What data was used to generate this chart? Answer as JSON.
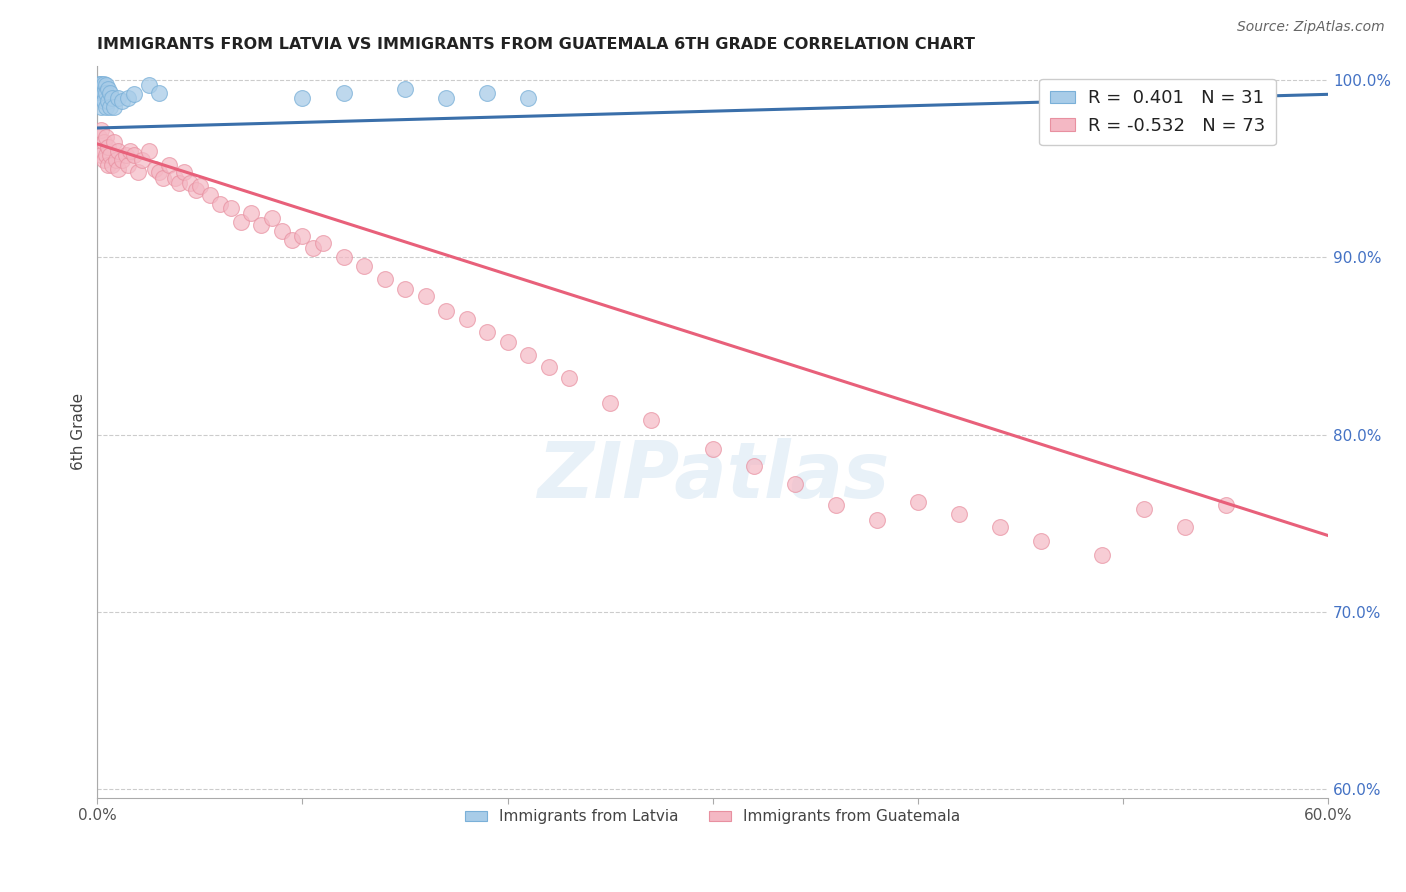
{
  "title": "IMMIGRANTS FROM LATVIA VS IMMIGRANTS FROM GUATEMALA 6TH GRADE CORRELATION CHART",
  "source": "Source: ZipAtlas.com",
  "ylabel": "6th Grade",
  "x_min": 0.0,
  "x_max": 0.6,
  "y_min": 0.595,
  "y_max": 1.008,
  "y_ticks_right": [
    0.6,
    0.7,
    0.8,
    0.9,
    1.0
  ],
  "y_tick_labels_right": [
    "60.0%",
    "70.0%",
    "80.0%",
    "90.0%",
    "100.0%"
  ],
  "watermark": "ZIPatlas",
  "latvia_color": "#a8cce8",
  "guatemala_color": "#f4b8c4",
  "latvia_line_color": "#3a6faa",
  "guatemala_line_color": "#e8607a",
  "latvia_line_x0": 0.0,
  "latvia_line_y0": 0.973,
  "latvia_line_x1": 0.6,
  "latvia_line_y1": 0.992,
  "guatemala_line_x0": 0.0,
  "guatemala_line_y0": 0.964,
  "guatemala_line_x1": 0.6,
  "guatemala_line_y1": 0.743,
  "latvia_x": [
    0.001,
    0.001,
    0.001,
    0.002,
    0.002,
    0.002,
    0.002,
    0.003,
    0.003,
    0.003,
    0.004,
    0.004,
    0.004,
    0.005,
    0.005,
    0.006,
    0.006,
    0.007,
    0.008,
    0.01,
    0.012,
    0.015,
    0.018,
    0.025,
    0.03,
    0.1,
    0.12,
    0.15,
    0.17,
    0.19,
    0.21
  ],
  "latvia_y": [
    0.998,
    0.995,
    0.992,
    0.998,
    0.995,
    0.99,
    0.985,
    0.998,
    0.993,
    0.988,
    0.997,
    0.993,
    0.985,
    0.995,
    0.988,
    0.993,
    0.985,
    0.99,
    0.985,
    0.99,
    0.988,
    0.99,
    0.992,
    0.997,
    0.993,
    0.99,
    0.993,
    0.995,
    0.99,
    0.993,
    0.99
  ],
  "guatemala_x": [
    0.001,
    0.001,
    0.002,
    0.002,
    0.003,
    0.003,
    0.004,
    0.004,
    0.005,
    0.005,
    0.006,
    0.007,
    0.008,
    0.009,
    0.01,
    0.01,
    0.012,
    0.014,
    0.015,
    0.016,
    0.018,
    0.02,
    0.022,
    0.025,
    0.028,
    0.03,
    0.032,
    0.035,
    0.038,
    0.04,
    0.042,
    0.045,
    0.048,
    0.05,
    0.055,
    0.06,
    0.065,
    0.07,
    0.075,
    0.08,
    0.085,
    0.09,
    0.095,
    0.1,
    0.105,
    0.11,
    0.12,
    0.13,
    0.14,
    0.15,
    0.16,
    0.17,
    0.18,
    0.19,
    0.2,
    0.21,
    0.22,
    0.23,
    0.25,
    0.27,
    0.3,
    0.32,
    0.34,
    0.36,
    0.38,
    0.4,
    0.42,
    0.44,
    0.46,
    0.49,
    0.51,
    0.53,
    0.55
  ],
  "guatemala_y": [
    0.968,
    0.96,
    0.972,
    0.958,
    0.965,
    0.955,
    0.968,
    0.958,
    0.962,
    0.952,
    0.958,
    0.952,
    0.965,
    0.955,
    0.96,
    0.95,
    0.955,
    0.958,
    0.952,
    0.96,
    0.958,
    0.948,
    0.955,
    0.96,
    0.95,
    0.948,
    0.945,
    0.952,
    0.945,
    0.942,
    0.948,
    0.942,
    0.938,
    0.94,
    0.935,
    0.93,
    0.928,
    0.92,
    0.925,
    0.918,
    0.922,
    0.915,
    0.91,
    0.912,
    0.905,
    0.908,
    0.9,
    0.895,
    0.888,
    0.882,
    0.878,
    0.87,
    0.865,
    0.858,
    0.852,
    0.845,
    0.838,
    0.832,
    0.818,
    0.808,
    0.792,
    0.782,
    0.772,
    0.76,
    0.752,
    0.762,
    0.755,
    0.748,
    0.74,
    0.732,
    0.758,
    0.748,
    0.76
  ]
}
